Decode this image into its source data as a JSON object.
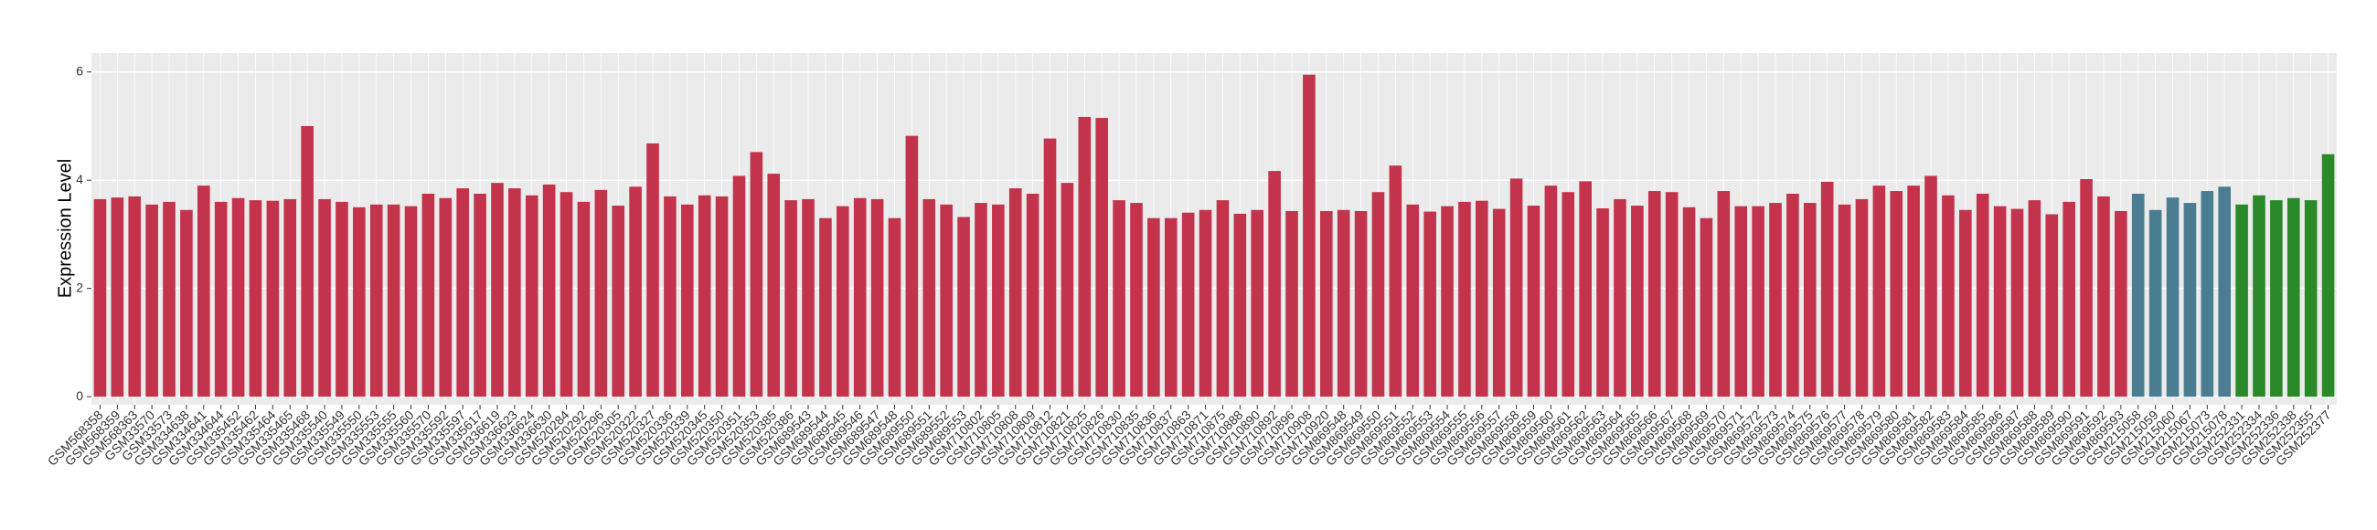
{
  "chart_data": {
    "type": "bar",
    "y_label": "Expression Level",
    "categories": [
      "GSM568358",
      "GSM568359",
      "GSM568363",
      "GSM33570",
      "GSM33573",
      "GSM334638",
      "GSM334641",
      "GSM334644",
      "GSM335452",
      "GSM335462",
      "GSM335464",
      "GSM335465",
      "GSM335468",
      "GSM335540",
      "GSM335549",
      "GSM335550",
      "GSM335553",
      "GSM335555",
      "GSM335560",
      "GSM335570",
      "GSM335592",
      "GSM335597",
      "GSM335617",
      "GSM336619",
      "GSM336623",
      "GSM336624",
      "GSM336630",
      "GSM520284",
      "GSM520292",
      "GSM520296",
      "GSM520305",
      "GSM520322",
      "GSM520327",
      "GSM520336",
      "GSM520339",
      "GSM520345",
      "GSM520350",
      "GSM520351",
      "GSM520353",
      "GSM520385",
      "GSM520386",
      "GSM689543",
      "GSM689544",
      "GSM689545",
      "GSM689546",
      "GSM689547",
      "GSM689548",
      "GSM689550",
      "GSM689551",
      "GSM689552",
      "GSM689553",
      "GSM710802",
      "GSM710805",
      "GSM710808",
      "GSM710809",
      "GSM710812",
      "GSM710821",
      "GSM710825",
      "GSM710826",
      "GSM710830",
      "GSM710835",
      "GSM710836",
      "GSM710837",
      "GSM710863",
      "GSM710871",
      "GSM710875",
      "GSM710888",
      "GSM710890",
      "GSM710892",
      "GSM710896",
      "GSM710908",
      "GSM710920",
      "GSM869548",
      "GSM869549",
      "GSM869550",
      "GSM869551",
      "GSM869552",
      "GSM869553",
      "GSM869554",
      "GSM869555",
      "GSM869556",
      "GSM869557",
      "GSM869558",
      "GSM869559",
      "GSM869560",
      "GSM869561",
      "GSM869562",
      "GSM869563",
      "GSM869564",
      "GSM869565",
      "GSM869566",
      "GSM869567",
      "GSM869568",
      "GSM869569",
      "GSM869570",
      "GSM869571",
      "GSM869572",
      "GSM869573",
      "GSM869574",
      "GSM869575",
      "GSM869576",
      "GSM869577",
      "GSM869578",
      "GSM869579",
      "GSM869580",
      "GSM869581",
      "GSM869582",
      "GSM869583",
      "GSM869584",
      "GSM869585",
      "GSM869586",
      "GSM869587",
      "GSM869588",
      "GSM869589",
      "GSM869590",
      "GSM869591",
      "GSM869592",
      "GSM869593",
      "GSM215058",
      "GSM215059",
      "GSM215060",
      "GSM215067",
      "GSM215073",
      "GSM215078",
      "GSM252331",
      "GSM252334",
      "GSM252336",
      "GSM252338",
      "GSM252355",
      "GSM252377"
    ],
    "values": [
      3.65,
      3.68,
      3.7,
      3.55,
      3.6,
      3.45,
      3.9,
      3.6,
      3.67,
      3.63,
      3.62,
      3.65,
      5.0,
      3.65,
      3.6,
      3.5,
      3.55,
      3.55,
      3.52,
      3.75,
      3.67,
      3.85,
      3.75,
      3.95,
      3.85,
      3.72,
      3.92,
      3.78,
      3.6,
      3.82,
      3.53,
      3.88,
      4.68,
      3.7,
      3.55,
      3.72,
      3.7,
      4.08,
      4.52,
      4.12,
      3.63,
      3.65,
      3.3,
      3.52,
      3.67,
      3.65,
      3.3,
      4.82,
      3.65,
      3.55,
      3.32,
      3.58,
      3.55,
      3.85,
      3.75,
      4.77,
      3.95,
      5.17,
      5.15,
      3.63,
      3.58,
      3.3,
      3.3,
      3.4,
      3.45,
      3.63,
      3.38,
      3.45,
      4.17,
      3.43,
      5.95,
      3.43,
      3.45,
      3.43,
      3.78,
      4.27,
      3.55,
      3.42,
      3.52,
      3.6,
      3.62,
      3.47,
      4.03,
      3.53,
      3.9,
      3.78,
      3.98,
      3.48,
      3.65,
      3.53,
      3.8,
      3.78,
      3.5,
      3.3,
      3.8,
      3.52,
      3.52,
      3.58,
      3.75,
      3.58,
      3.97,
      3.55,
      3.65,
      3.9,
      3.8,
      3.9,
      4.08,
      3.72,
      3.45,
      3.75,
      3.52,
      3.47,
      3.63,
      3.37,
      3.6,
      4.02,
      3.7,
      3.43,
      3.75,
      3.45,
      3.68,
      3.58,
      3.8,
      3.88,
      3.55,
      3.72,
      3.63,
      3.67,
      3.63,
      4.48
    ],
    "bar_colors": [
      "#c3334c",
      "#c3334c",
      "#c3334c",
      "#c3334c",
      "#c3334c",
      "#c3334c",
      "#c3334c",
      "#c3334c",
      "#c3334c",
      "#c3334c",
      "#c3334c",
      "#c3334c",
      "#c3334c",
      "#c3334c",
      "#c3334c",
      "#c3334c",
      "#c3334c",
      "#c3334c",
      "#c3334c",
      "#c3334c",
      "#c3334c",
      "#c3334c",
      "#c3334c",
      "#c3334c",
      "#c3334c",
      "#c3334c",
      "#c3334c",
      "#c3334c",
      "#c3334c",
      "#c3334c",
      "#c3334c",
      "#c3334c",
      "#c3334c",
      "#c3334c",
      "#c3334c",
      "#c3334c",
      "#c3334c",
      "#c3334c",
      "#c3334c",
      "#c3334c",
      "#c3334c",
      "#c3334c",
      "#c3334c",
      "#c3334c",
      "#c3334c",
      "#c3334c",
      "#c3334c",
      "#c3334c",
      "#c3334c",
      "#c3334c",
      "#c3334c",
      "#c3334c",
      "#c3334c",
      "#c3334c",
      "#c3334c",
      "#c3334c",
      "#c3334c",
      "#c3334c",
      "#c3334c",
      "#c3334c",
      "#c3334c",
      "#c3334c",
      "#c3334c",
      "#c3334c",
      "#c3334c",
      "#c3334c",
      "#c3334c",
      "#c3334c",
      "#c3334c",
      "#c3334c",
      "#c3334c",
      "#c3334c",
      "#c3334c",
      "#c3334c",
      "#c3334c",
      "#c3334c",
      "#c3334c",
      "#c3334c",
      "#c3334c",
      "#c3334c",
      "#c3334c",
      "#c3334c",
      "#c3334c",
      "#c3334c",
      "#c3334c",
      "#c3334c",
      "#c3334c",
      "#c3334c",
      "#c3334c",
      "#c3334c",
      "#c3334c",
      "#c3334c",
      "#c3334c",
      "#c3334c",
      "#c3334c",
      "#c3334c",
      "#c3334c",
      "#c3334c",
      "#c3334c",
      "#c3334c",
      "#c3334c",
      "#c3334c",
      "#c3334c",
      "#c3334c",
      "#c3334c",
      "#c3334c",
      "#c3334c",
      "#c3334c",
      "#c3334c",
      "#c3334c",
      "#c3334c",
      "#c3334c",
      "#c3334c",
      "#c3334c",
      "#c3334c",
      "#c3334c",
      "#c3334c",
      "#c3334c",
      "#4a7d92",
      "#4a7d92",
      "#4a7d92",
      "#4a7d92",
      "#4a7d92",
      "#4a7d92",
      "#2a8a2a",
      "#2a8a2a",
      "#2a8a2a",
      "#2a8a2a",
      "#2a8a2a",
      "#2a8a2a"
    ],
    "ylim": [
      -0.15,
      6.35
    ],
    "yticks": [
      0,
      2,
      4,
      6
    ],
    "grid": true
  }
}
